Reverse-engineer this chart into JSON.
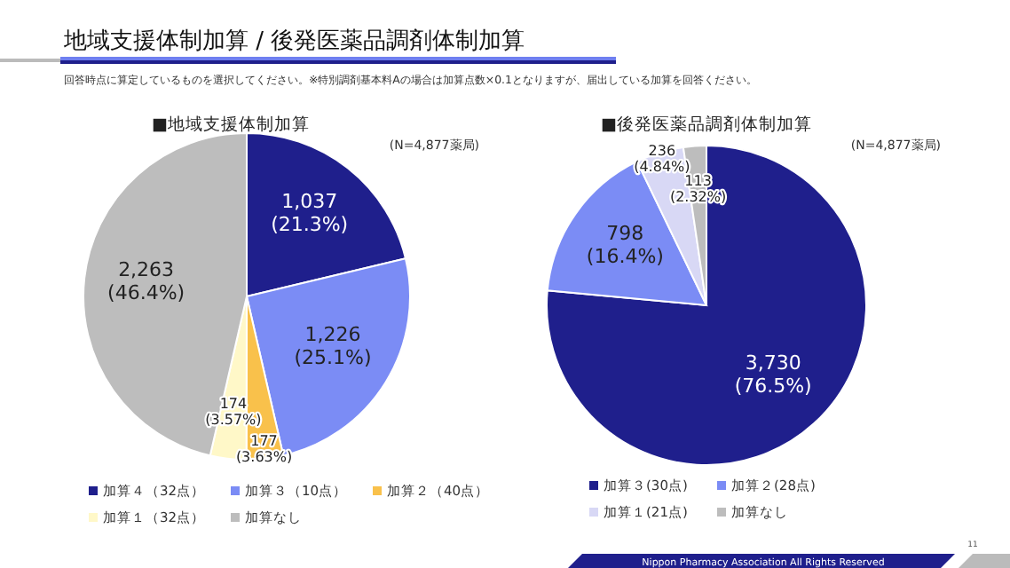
{
  "chart_data": [
    {
      "type": "pie",
      "title": "■地域支援体制加算",
      "categories": [
        "加算４（32点）",
        "加算３（10点）",
        "加算２（40点）",
        "加算１（32点）",
        "加算なし"
      ],
      "values": [
        1037,
        1226,
        177,
        174,
        2263
      ],
      "value_labels": [
        "1,037 (21.3%)",
        "1,226 (25.1%)",
        "177 (3.63%)",
        "174 (3.57%)",
        "2,263 (46.4%)"
      ],
      "colors": [
        "#1f1f8c",
        "#7b8cf5",
        "#f9c14b",
        "#fff8c8",
        "#bdbdbd"
      ],
      "legend": "bottom",
      "annotations": [
        "地域支援体制加算 / 後発医薬品調剤体制加算",
        "回答時点に算定しているものを選択してください。※特別調剤基本料Aの場合は加算点数×0.1となりますが、届出している加算を回答ください。",
        "(N=4,877薬局)"
      ]
    },
    {
      "type": "pie",
      "title": "■後発医薬品調剤体制加算",
      "categories": [
        "加算３(30点)",
        "加算２(28点)",
        "加算１(21点)",
        "加算なし"
      ],
      "values": [
        3730,
        798,
        236,
        113
      ],
      "value_labels": [
        "3,730 (76.5%)",
        "798 (16.4%)",
        "236 (4.84%)",
        "113 (2.32%)"
      ],
      "colors": [
        "#1f1f8c",
        "#7b8cf5",
        "#d8d8f5",
        "#bdbdbd"
      ],
      "legend": "bottom",
      "annotations": [
        "(N=4,877薬局)",
        "Nippon Pharmacy Association All Rights Reserved",
        "11"
      ]
    }
  ]
}
